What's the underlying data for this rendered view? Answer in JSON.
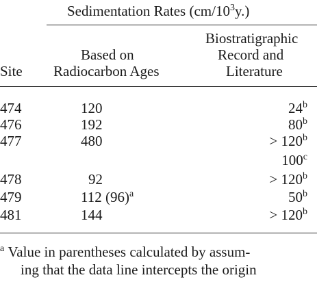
{
  "header": {
    "group_title_prefix": "Sedimentation Rates (cm/10",
    "group_title_exp": "3",
    "group_title_suffix": "y.)",
    "site": "Site",
    "radiocarbon_line1": "Based on",
    "radiocarbon_line2": "Radiocarbon Ages",
    "bio_line1": "Biostratigraphic",
    "bio_line2": "Record and",
    "bio_line3": "Literature"
  },
  "rows": [
    {
      "site": "474",
      "radiocarbon": "120",
      "radiocarbon_note": "",
      "radiocarbon_sup": "",
      "bio": "24",
      "bio_sup": "b"
    },
    {
      "site": "476",
      "radiocarbon": "192",
      "radiocarbon_note": "",
      "radiocarbon_sup": "",
      "bio": "80",
      "bio_sup": "b"
    },
    {
      "site": "477",
      "radiocarbon": "480",
      "radiocarbon_note": "",
      "radiocarbon_sup": "",
      "bio": "> 120",
      "bio_sup": "b",
      "bio_extra": "100",
      "bio_extra_sup": "c"
    },
    {
      "site": "478",
      "radiocarbon": "92",
      "radiocarbon_note": "",
      "radiocarbon_sup": "",
      "bio": "> 120",
      "bio_sup": "b"
    },
    {
      "site": "479",
      "radiocarbon": "112",
      "radiocarbon_note": "(96)",
      "radiocarbon_sup": "a",
      "bio": "50",
      "bio_sup": "b"
    },
    {
      "site": "481",
      "radiocarbon": "144",
      "radiocarbon_note": "",
      "radiocarbon_sup": "",
      "bio": "> 120",
      "bio_sup": "b"
    }
  ],
  "footnote": {
    "marker": "a",
    "line1": "Value in parentheses calculated by assum-",
    "line2": "ing that the data line intercepts the origin"
  }
}
